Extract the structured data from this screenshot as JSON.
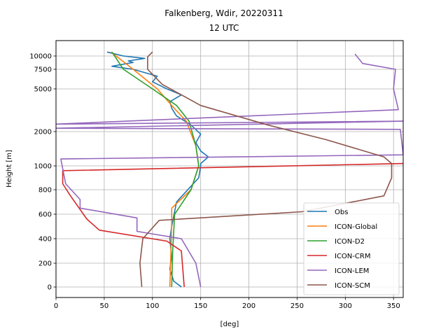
{
  "chart_data": {
    "type": "line",
    "title": "Falkenberg, Wdir, 20220311",
    "subtitle": "12 UTC",
    "xlabel": "[deg]",
    "ylabel": "Height [m]",
    "xlim": [
      0,
      360
    ],
    "x_ticks": [
      0,
      50,
      100,
      150,
      200,
      250,
      300,
      350
    ],
    "y_ticks": [
      {
        "label": "0",
        "value": 0
      },
      {
        "label": "200",
        "value": 200
      },
      {
        "label": "400",
        "value": 400
      },
      {
        "label": "600",
        "value": 600
      },
      {
        "label": "800",
        "value": 800
      },
      {
        "label": "1000",
        "value": 1000
      },
      {
        "label": "2000",
        "value": 2000
      },
      {
        "label": "5000",
        "value": 5000
      },
      {
        "label": "7500",
        "value": 7500
      },
      {
        "label": "10000",
        "value": 10000
      }
    ],
    "grid": true,
    "legend_position": "bottom-right",
    "series": [
      {
        "name": "Obs",
        "color": "#1f77b4",
        "points": [
          [
            130,
            0
          ],
          [
            122,
            50
          ],
          [
            118,
            150
          ],
          [
            120,
            250
          ],
          [
            118,
            400
          ],
          [
            120,
            500
          ],
          [
            125,
            700
          ],
          [
            148,
            900
          ],
          [
            150,
            1000
          ],
          [
            150,
            1050
          ],
          [
            158,
            1200
          ],
          [
            150,
            1350
          ],
          [
            145,
            1600
          ],
          [
            150,
            1900
          ],
          [
            140,
            2300
          ],
          [
            125,
            2800
          ],
          [
            120,
            3300
          ],
          [
            118,
            3800
          ],
          [
            130,
            4400
          ],
          [
            115,
            5000
          ],
          [
            100,
            5800
          ],
          [
            105,
            6500
          ],
          [
            80,
            7500
          ],
          [
            58,
            8000
          ],
          [
            80,
            8700
          ],
          [
            75,
            9000
          ],
          [
            92,
            9500
          ],
          [
            70,
            10000
          ],
          [
            53,
            10800
          ]
        ]
      },
      {
        "name": "ICON-Global",
        "color": "#ff7f0e",
        "points": [
          [
            118,
            0
          ],
          [
            119,
            250
          ],
          [
            120,
            550
          ],
          [
            120,
            650
          ],
          [
            140,
            800
          ],
          [
            148,
            1000
          ],
          [
            145,
            1500
          ],
          [
            135,
            2500
          ],
          [
            120,
            3500
          ],
          [
            105,
            5000
          ],
          [
            80,
            7500
          ],
          [
            57,
            10800
          ]
        ]
      },
      {
        "name": "ICON-D2",
        "color": "#2ca02c",
        "points": [
          [
            120,
            0
          ],
          [
            121,
            300
          ],
          [
            123,
            600
          ],
          [
            140,
            800
          ],
          [
            148,
            1000
          ],
          [
            145,
            1500
          ],
          [
            138,
            2500
          ],
          [
            125,
            3500
          ],
          [
            100,
            5000
          ],
          [
            70,
            7500
          ],
          [
            58,
            10800
          ]
        ]
      },
      {
        "name": "ICON-CRM",
        "color": "#d62728",
        "points": [
          [
            133,
            0
          ],
          [
            130,
            300
          ],
          [
            115,
            380
          ],
          [
            45,
            470
          ],
          [
            32,
            560
          ],
          [
            15,
            750
          ],
          [
            7,
            850
          ],
          [
            7,
            960
          ],
          [
            360,
            1050
          ]
        ]
      },
      {
        "name": "ICON-LEM",
        "color": "#9467bd",
        "points": [
          [
            150,
            0
          ],
          [
            145,
            200
          ],
          [
            130,
            400
          ],
          [
            84,
            460
          ],
          [
            84,
            570
          ],
          [
            25,
            650
          ],
          [
            25,
            720
          ],
          [
            10,
            850
          ],
          [
            5,
            1150
          ],
          [
            360,
            1250
          ],
          [
            357,
            2100
          ],
          [
            0,
            2150
          ],
          [
            360,
            2500
          ],
          [
            0,
            2350
          ],
          [
            355,
            3200
          ],
          [
            350,
            5000
          ],
          [
            352,
            7500
          ],
          [
            318,
            8500
          ],
          [
            310,
            10400
          ]
        ]
      },
      {
        "name": "ICON-SCM",
        "color": "#8c564b",
        "points": [
          [
            89,
            0
          ],
          [
            87,
            200
          ],
          [
            90,
            400
          ],
          [
            107,
            550
          ],
          [
            255,
            620
          ],
          [
            340,
            750
          ],
          [
            348,
            900
          ],
          [
            348,
            1050
          ],
          [
            340,
            1200
          ],
          [
            280,
            1700
          ],
          [
            220,
            2300
          ],
          [
            150,
            3500
          ],
          [
            110,
            5500
          ],
          [
            95,
            7500
          ],
          [
            95,
            9800
          ],
          [
            100,
            10800
          ]
        ]
      }
    ]
  }
}
